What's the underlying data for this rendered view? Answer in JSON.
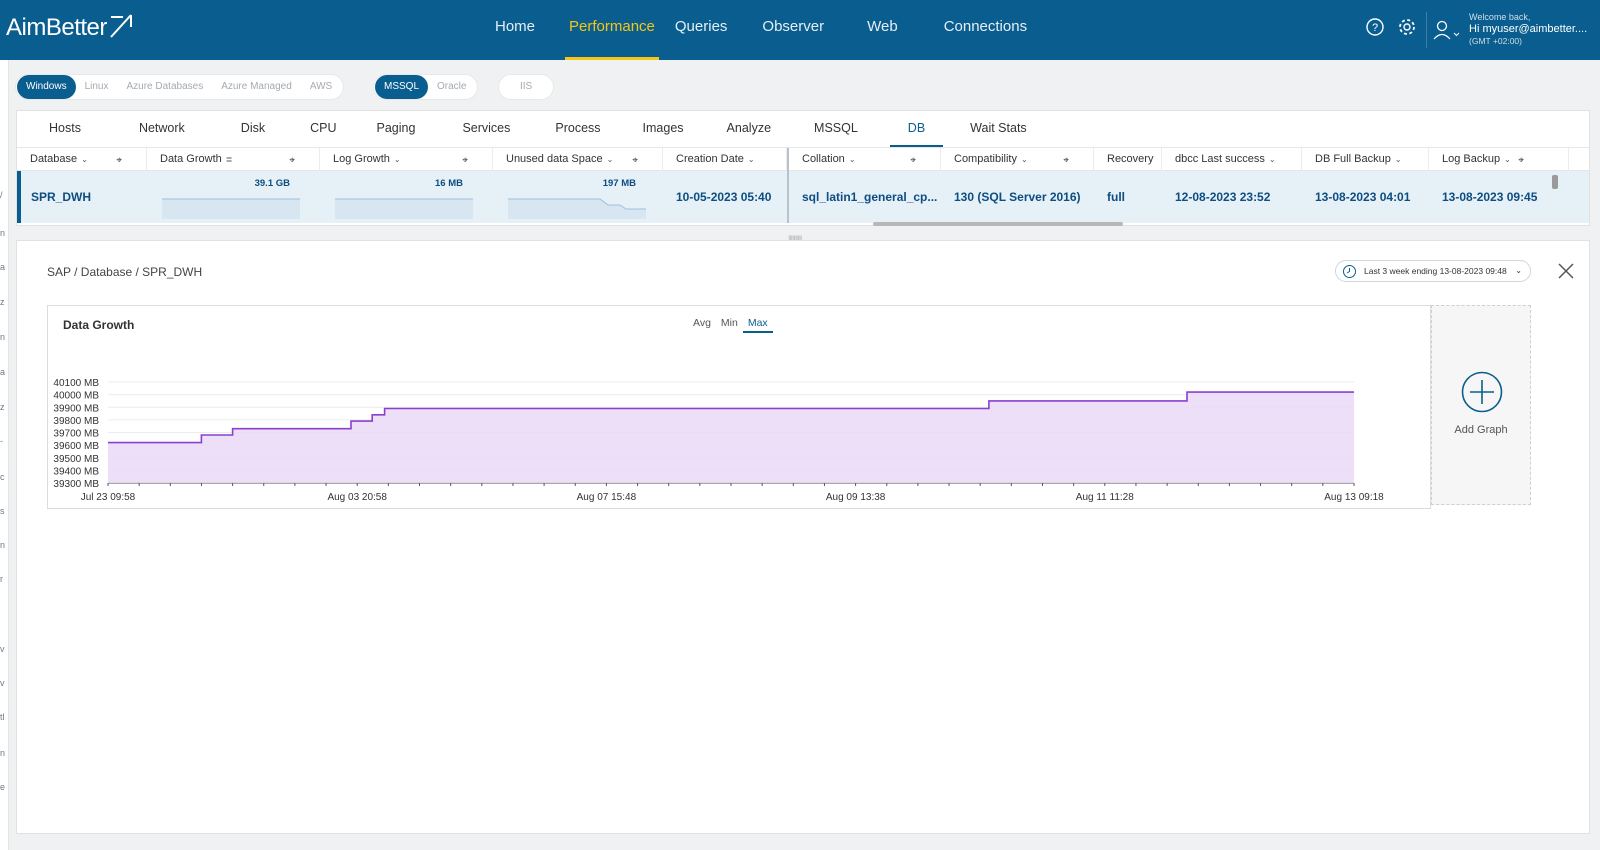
{
  "brand": {
    "name": "AimBetter"
  },
  "nav": {
    "items": [
      "Home",
      "Performance",
      "Queries",
      "Observer",
      "Web",
      "Connections"
    ],
    "active": "Performance"
  },
  "user": {
    "welcome": "Welcome back,",
    "greeting": "Hi myuser@aimbetter....",
    "tz": "(GMT +02:00)"
  },
  "platforms": {
    "os": [
      "Windows",
      "Linux",
      "Azure Databases",
      "Azure Managed",
      "AWS"
    ],
    "os_active": "Windows",
    "db": [
      "MSSQL",
      "Oracle"
    ],
    "db_active": "MSSQL",
    "web": [
      "IIS"
    ]
  },
  "tabs": {
    "items": [
      "Hosts",
      "Network",
      "Disk",
      "CPU",
      "Paging",
      "Services",
      "Process",
      "Images",
      "Analyze",
      "MSSQL",
      "DB",
      "Wait Stats"
    ],
    "active": "DB"
  },
  "grid": {
    "columns": [
      "Database",
      "Data Growth",
      "Log Growth",
      "Unused data Space",
      "Creation Date",
      "Collation",
      "Compatibility",
      "Recovery",
      "dbcc Last success",
      "DB Full Backup",
      "Log Backup"
    ],
    "row": {
      "database": "SPR_DWH",
      "data_growth": "39.1 GB",
      "log_growth": "16 MB",
      "unused_space": "197 MB",
      "creation_date": "10-05-2023 05:40",
      "collation": "sql_latin1_general_cp...",
      "compatibility": "130 (SQL Server 2016)",
      "recovery": "full",
      "dbcc_last_success": "12-08-2023 23:52",
      "db_full_backup": "13-08-2023 04:01",
      "log_backup": "13-08-2023 09:45"
    }
  },
  "detail": {
    "breadcrumb": "SAP / Database / SPR_DWH",
    "range": "Last 3 week ending  13-08-2023 09:48",
    "add_graph": "Add Graph"
  },
  "colors": {
    "brand": "#0a5e8f",
    "accent": "#f5c518",
    "series": "#8a3fd1",
    "fill": "#ead9f7"
  },
  "chart_data": {
    "type": "area",
    "title": "Data Growth",
    "aggregations": [
      "Avg",
      "Min",
      "Max"
    ],
    "aggregation_active": "Max",
    "y_ticks": [
      "40100 MB",
      "40000 MB",
      "39900 MB",
      "39800 MB",
      "39700 MB",
      "39600 MB",
      "39500 MB",
      "39400 MB",
      "39300 MB"
    ],
    "x_ticks": [
      "Jul 23 09:58",
      "Aug 03 20:58",
      "Aug 07 15:48",
      "Aug 09 13:38",
      "Aug 11 11:28",
      "Aug 13 09:18"
    ],
    "ylim": [
      39300,
      40100
    ],
    "series": [
      {
        "x": [
          0,
          0.075,
          0.075,
          0.1,
          0.1,
          0.195,
          0.195,
          0.212,
          0.212,
          0.222,
          0.222,
          0.707,
          0.707,
          0.866,
          0.866,
          1.0
        ],
        "y": [
          39620,
          39620,
          39680,
          39680,
          39730,
          39730,
          39790,
          39790,
          39840,
          39840,
          39890,
          39890,
          39950,
          39950,
          40020,
          40020
        ]
      }
    ]
  }
}
